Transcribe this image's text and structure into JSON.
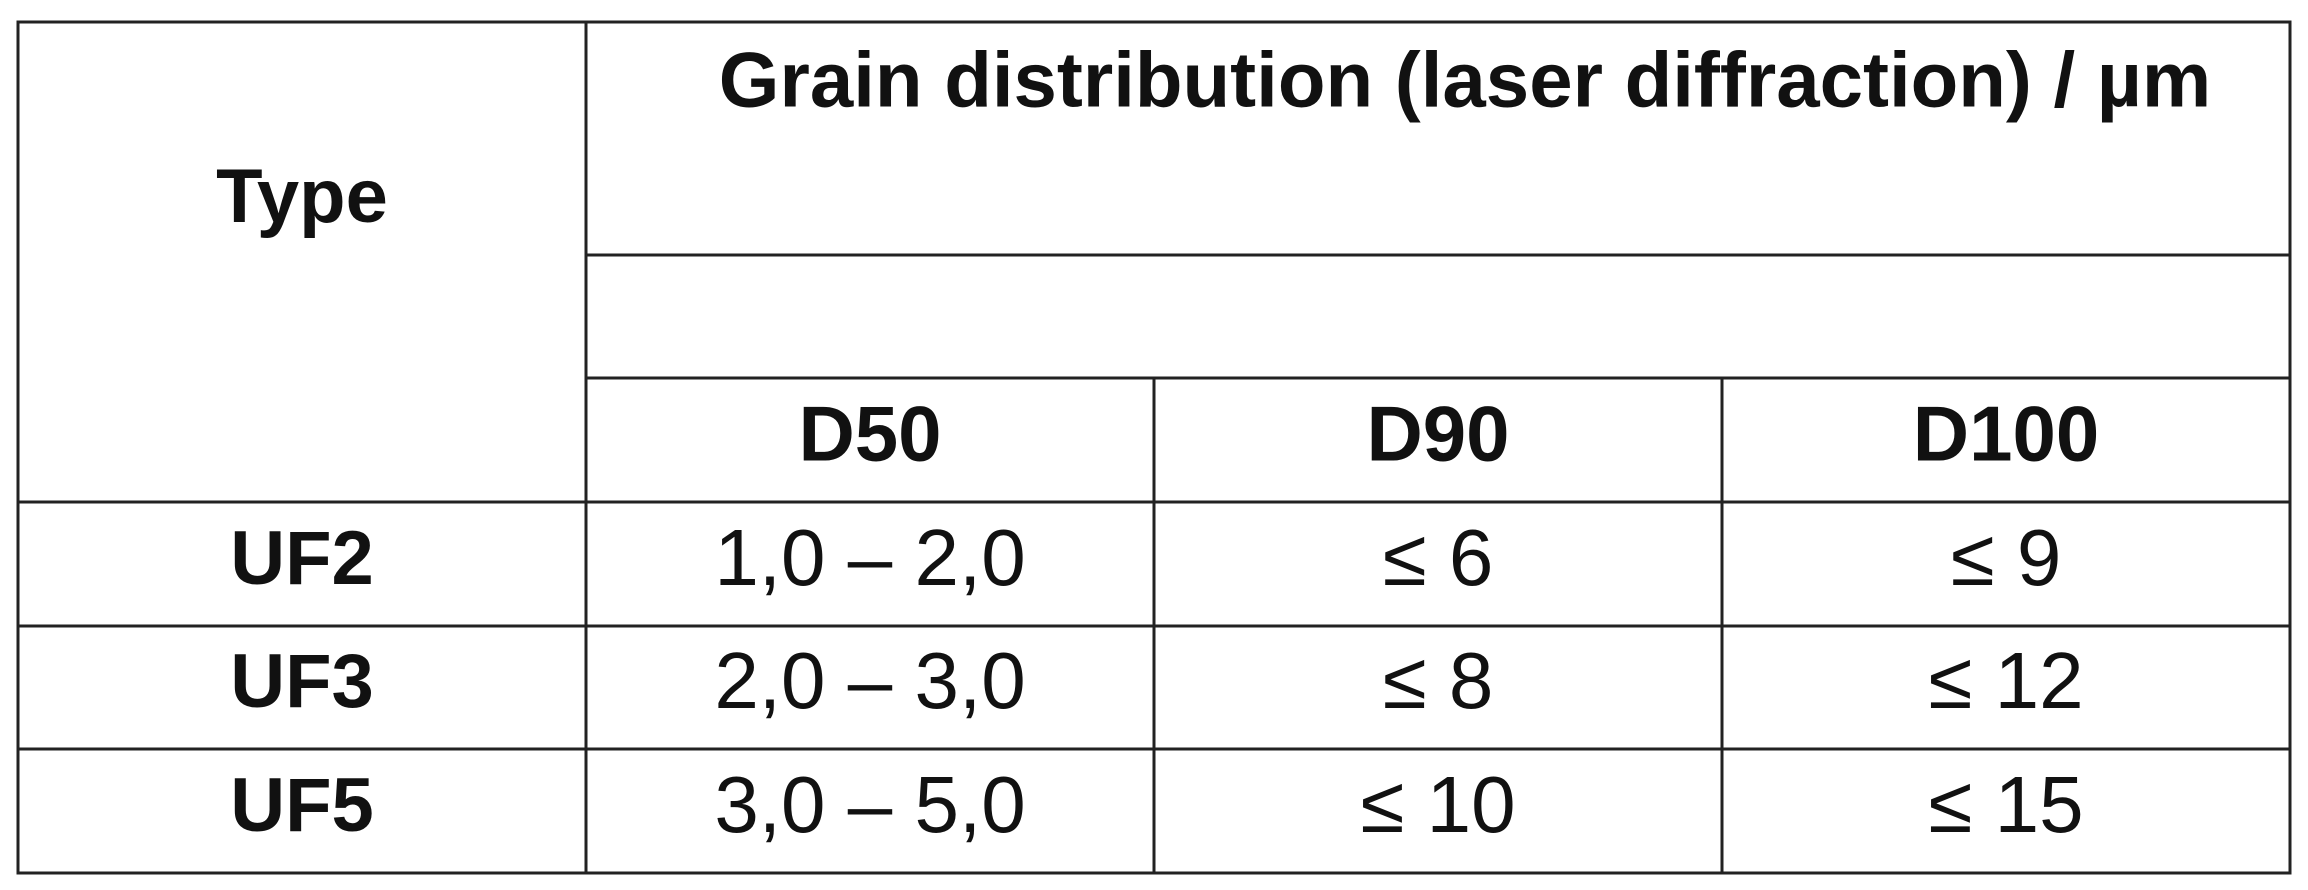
{
  "table": {
    "header": {
      "type": "Type",
      "title": "Grain distribution (laser diffraction) / µm",
      "columns": [
        "D50",
        "D90",
        "D100"
      ]
    },
    "rows": [
      [
        "UF2",
        "1,0 – 2,0",
        "≤ 6",
        "≤ 9"
      ],
      [
        "UF3",
        "2,0 – 3,0",
        "≤ 8",
        "≤ 12"
      ],
      [
        "UF5",
        "3,0 – 5,0",
        "≤ 10",
        "≤ 15"
      ]
    ]
  }
}
